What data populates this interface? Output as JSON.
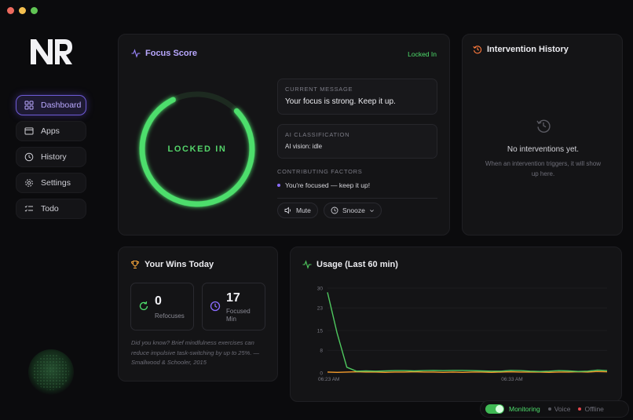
{
  "window": {
    "controls": [
      "close",
      "minimize",
      "maximize"
    ]
  },
  "sidebar": {
    "items": [
      {
        "label": "Dashboard",
        "icon": "grid-icon",
        "active": true
      },
      {
        "label": "Apps",
        "icon": "window-icon",
        "active": false
      },
      {
        "label": "History",
        "icon": "clock-icon",
        "active": false
      },
      {
        "label": "Settings",
        "icon": "gear-icon",
        "active": false
      },
      {
        "label": "Todo",
        "icon": "checklist-icon",
        "active": false
      }
    ]
  },
  "focus": {
    "title": "Focus Score",
    "status": "Locked In",
    "ring_label": "LOCKED IN",
    "ring_fraction": 0.8,
    "current_message_label": "CURRENT MESSAGE",
    "current_message": "Your focus is strong. Keep it up.",
    "ai_label": "AI CLASSIFICATION",
    "ai_value": "AI vision: idle",
    "factors_label": "CONTRIBUTING FACTORS",
    "factors": [
      "You're focused — keep it up!"
    ],
    "mute_label": "Mute",
    "snooze_label": "Snooze"
  },
  "history": {
    "title": "Intervention History",
    "empty_title": "No interventions yet.",
    "empty_desc": "When an intervention triggers, it will show up here."
  },
  "wins": {
    "title": "Your Wins Today",
    "refocuses_value": "0",
    "refocuses_label": "Refocuses",
    "focused_value": "17",
    "focused_label_1": "Focused",
    "focused_label_2": "Min",
    "fact": "Did you know? Brief mindfulness exercises can reduce impulsive task-switching by up to 25%. — Smallwood & Schooler, 2015"
  },
  "usage": {
    "title": "Usage (Last 60 min)"
  },
  "chart_data": {
    "type": "line",
    "title": "Usage (Last 60 min)",
    "y_ticks": [
      "30",
      "23",
      "15",
      "8",
      "0"
    ],
    "ylim": [
      0,
      30
    ],
    "x_labels": [
      "06:23 AM",
      "06:33 AM"
    ],
    "series": [
      {
        "color": "#4fc95f",
        "values": [
          28.5,
          14,
          2,
          0.6,
          0.7,
          0.6,
          0.7,
          0.8,
          0.8,
          0.7,
          0.8,
          0.9,
          0.8,
          0.9,
          0.9,
          0.8,
          0.7,
          0.6,
          0.6,
          0.9,
          0.8,
          0.6,
          0.5,
          0.6,
          0.8,
          0.7,
          0.5,
          0.6,
          1.0,
          0.8
        ]
      },
      {
        "color": "#f39a2a",
        "values": [
          0.3,
          0.2,
          0.3,
          0.4,
          0.3,
          0.3,
          0.2,
          0.3,
          0.3,
          0.4,
          0.3,
          0.3,
          0.2,
          0.3,
          0.2,
          0.3,
          0.3,
          0.2,
          0.3,
          0.4,
          0.3,
          0.3,
          0.3,
          0.2,
          0.3,
          0.3,
          0.4,
          0.3,
          0.5,
          0.4
        ]
      }
    ]
  },
  "statusbar": {
    "monitoring_label": "Monitoring",
    "voice_label": "Voice",
    "offline_label": "Offline",
    "monitoring_on": true
  },
  "colors": {
    "accent": "#7c5cff",
    "focus_green": "#4ede6c",
    "usage_green": "#4fc95f",
    "usage_orange": "#f39a2a",
    "offline_red": "#e5484d"
  }
}
